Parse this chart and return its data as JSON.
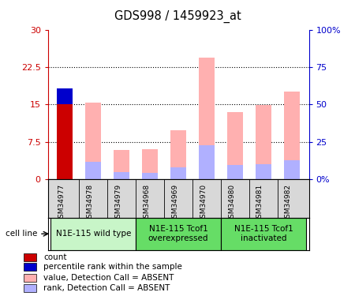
{
  "title": "GDS998 / 1459923_at",
  "samples": [
    "GSM34977",
    "GSM34978",
    "GSM34979",
    "GSM34968",
    "GSM34969",
    "GSM34970",
    "GSM34980",
    "GSM34981",
    "GSM34982"
  ],
  "count_values": [
    15.0,
    0.0,
    0.0,
    0.0,
    0.0,
    0.0,
    0.0,
    0.0,
    0.0
  ],
  "percentile_values": [
    3.2,
    0.0,
    0.0,
    0.0,
    0.0,
    0.0,
    0.0,
    0.0,
    0.0
  ],
  "value_absent": [
    0.0,
    15.3,
    5.8,
    6.0,
    9.8,
    24.3,
    13.5,
    14.8,
    17.5
  ],
  "rank_absent": [
    0.0,
    3.5,
    1.4,
    1.2,
    2.3,
    6.8,
    2.8,
    3.0,
    3.8
  ],
  "ylim_left": [
    0,
    30
  ],
  "ylim_right": [
    0,
    100
  ],
  "yticks_left": [
    0,
    7.5,
    15,
    22.5,
    30
  ],
  "yticks_right": [
    0,
    25,
    50,
    75,
    100
  ],
  "ytick_labels_left": [
    "0",
    "7.5",
    "15",
    "22.5",
    "30"
  ],
  "ytick_labels_right": [
    "0%",
    "25",
    "50",
    "75",
    "100%"
  ],
  "count_color": "#cc0000",
  "percentile_color": "#0000cc",
  "value_absent_color": "#ffb0b0",
  "rank_absent_color": "#b0b0ff",
  "bar_width": 0.55,
  "cell_line_label": "cell line",
  "legend_items": [
    {
      "color": "#cc0000",
      "label": "count"
    },
    {
      "color": "#0000cc",
      "label": "percentile rank within the sample"
    },
    {
      "color": "#ffb0b0",
      "label": "value, Detection Call = ABSENT"
    },
    {
      "color": "#b0b0ff",
      "label": "rank, Detection Call = ABSENT"
    }
  ],
  "group_defs": [
    {
      "xstart": 0,
      "xend": 2,
      "label": "N1E-115 wild type",
      "color": "#c8f5c8"
    },
    {
      "xstart": 3,
      "xend": 5,
      "label": "N1E-115 Tcof1\noverexpressed",
      "color": "#66dd66"
    },
    {
      "xstart": 6,
      "xend": 8,
      "label": "N1E-115 Tcof1\ninactivated",
      "color": "#66dd66"
    }
  ],
  "sample_band_color": "#d8d8d8",
  "left_axis_color": "#cc0000",
  "right_axis_color": "#0000cc"
}
